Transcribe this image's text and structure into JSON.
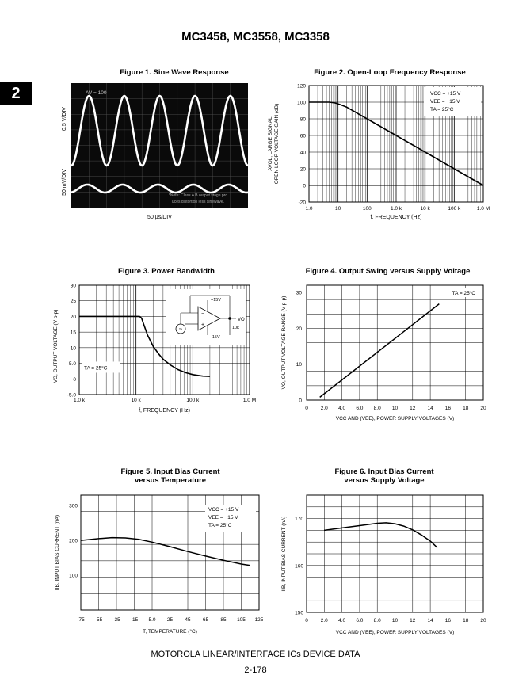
{
  "header": {
    "title": "MC3458, MC3558, MC3358",
    "section_tab": "2"
  },
  "footer": {
    "text": "MOTOROLA LINEAR/INTERFACE ICs DEVICE DATA",
    "page": "2-178"
  },
  "chart_data": [
    {
      "id": "fig1",
      "type": "oscilloscope",
      "title": "Figure 1. Sine Wave Response",
      "xlabel": "50 μs/DIV",
      "ylabels": [
        "0.5 V/DIV",
        "50 mV/DIV"
      ],
      "annotation_gain": "AV = 100",
      "note": "*Note: Class A B output stage produces distortion less sinewave.",
      "cycles": 5
    },
    {
      "id": "fig2",
      "type": "line",
      "title": "Figure 2. Open-Loop Frequency Response",
      "xlabel": "f, FREQUENCY (Hz)",
      "ylabel_lines": [
        "AVOL, LARGE SIGNAL",
        "OPEN LOOP VOLTAGE GAIN (dB)"
      ],
      "xscale": "log",
      "xlim": [
        1,
        1000000
      ],
      "ylim": [
        -20,
        120
      ],
      "xticks": [
        "1.0",
        "10",
        "100",
        "1.0 k",
        "10 k",
        "100 k",
        "1.0 M"
      ],
      "yticks": [
        -20,
        0,
        20,
        40,
        60,
        80,
        100,
        120
      ],
      "legend": [
        "VCC = +15 V",
        "VEE = −15 V",
        "TA = 25°C"
      ],
      "series": [
        {
          "x": [
            1,
            2,
            3,
            5,
            8,
            12,
            20,
            100,
            1000,
            10000,
            100000,
            1000000
          ],
          "y": [
            100,
            100,
            100,
            100,
            99,
            97,
            94,
            80,
            60,
            40,
            20,
            0
          ]
        }
      ]
    },
    {
      "id": "fig3",
      "type": "line",
      "title": "Figure 3. Power Bandwidth",
      "xlabel": "f, FREQUENCY (Hz)",
      "ylabel": "VO, OUTPUT VOLTAGE (V p-p)",
      "xscale": "log",
      "xlim": [
        1000,
        1000000
      ],
      "ylim": [
        -5,
        30
      ],
      "xticks": [
        "1.0 k",
        "10 k",
        "100 k",
        "1.0 M"
      ],
      "yticks": [
        "-5.0",
        "0",
        "5.0",
        "10",
        "15",
        "20",
        "25",
        "30"
      ],
      "ytick_values": [
        -5,
        0,
        5,
        10,
        15,
        20,
        25,
        30
      ],
      "annotation": "TA = 25°C",
      "circuit_labels": {
        "vpos": "+15V",
        "vneg": "-15V",
        "load": "10k",
        "out": "VO"
      },
      "series": [
        {
          "x": [
            1000,
            10000,
            11500,
            12500,
            14000,
            16000,
            20000,
            25000,
            30000,
            40000,
            55000,
            75000,
            100000,
            150000,
            200000
          ],
          "y": [
            20,
            20,
            20,
            19.5,
            17,
            14,
            10.5,
            8,
            6.3,
            4.5,
            3,
            2,
            1.4,
            0.9,
            0.8
          ]
        }
      ]
    },
    {
      "id": "fig4",
      "type": "line",
      "title": "Figure 4. Output Swing versus Supply Voltage",
      "xlabel": "VCC AND (VEE), POWER SUPPLY VOLTAGES (V)",
      "ylabel": "VO, OUTPUT VOLTAGE RANGE (V p-p)",
      "xlim": [
        0,
        20
      ],
      "ylim": [
        0,
        32
      ],
      "xticks": [
        "0",
        "2.0",
        "4.0",
        "6.0",
        "8.0",
        "10",
        "12",
        "14",
        "16",
        "18",
        "20"
      ],
      "yticks": [
        0,
        10,
        20,
        30
      ],
      "annotation": "TA = 25°C",
      "series": [
        {
          "x": [
            1.5,
            15
          ],
          "y": [
            0.8,
            26.8
          ]
        }
      ]
    },
    {
      "id": "fig5",
      "type": "line",
      "title_lines": [
        "Figure 5. Input Bias Current",
        "versus Temperature"
      ],
      "xlabel": "T, TEMPERATURE (°C)",
      "ylabel": "IIB, INPUT BIAS CURRENT (nA)",
      "xlim": [
        -75,
        125
      ],
      "ylim": [
        0,
        330
      ],
      "xticks": [
        "-75",
        "-55",
        "-35",
        "-15",
        "5.0",
        "25",
        "45",
        "65",
        "85",
        "105",
        "125"
      ],
      "yticks": [
        100,
        200,
        300
      ],
      "legend": [
        "VCC = +15 V",
        "VEE = −15 V",
        "TA = 25°C"
      ],
      "series": [
        {
          "x": [
            -75,
            -55,
            -40,
            -25,
            -10,
            5,
            25,
            45,
            65,
            85,
            105,
            115
          ],
          "y": [
            200,
            205,
            208,
            207,
            203,
            195,
            182,
            168,
            155,
            143,
            132,
            128
          ]
        }
      ]
    },
    {
      "id": "fig6",
      "type": "line",
      "title_lines": [
        "Figure 6. Input Bias Current",
        "versus Supply Voltage"
      ],
      "xlabel": "VCC AND (VEE), POWER SUPPLY VOLTAGES (V)",
      "ylabel": "IIB, INPUT BIAS CURRENT (nA)",
      "xlim": [
        0,
        20
      ],
      "ylim": [
        150,
        175
      ],
      "xticks": [
        "0",
        "2.0",
        "4.0",
        "6.0",
        "8.0",
        "10",
        "12",
        "14",
        "16",
        "18",
        "20"
      ],
      "yticks": [
        150,
        160,
        170
      ],
      "series": [
        {
          "x": [
            2,
            4,
            6,
            8,
            9,
            10,
            11,
            12,
            13,
            14,
            14.8
          ],
          "y": [
            167.5,
            168,
            168.5,
            169,
            169.1,
            168.9,
            168.4,
            167.6,
            166.5,
            165.2,
            163.8
          ]
        }
      ]
    }
  ]
}
